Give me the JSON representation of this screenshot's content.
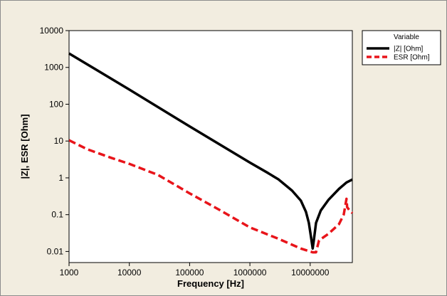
{
  "chart_data": {
    "type": "line",
    "title": "",
    "xlabel": "Frequency [Hz]",
    "ylabel": "|Z|, ESR [Ohm]",
    "x_scale": "log",
    "y_scale": "log",
    "xlim": [
      1000,
      50000000
    ],
    "ylim": [
      0.005,
      10000
    ],
    "x_ticks": [
      {
        "value": 1000,
        "label": "1000"
      },
      {
        "value": 10000,
        "label": "10000"
      },
      {
        "value": 100000,
        "label": "100000"
      },
      {
        "value": 1000000,
        "label": "1000000"
      },
      {
        "value": 10000000,
        "label": "10000000"
      }
    ],
    "y_ticks": [
      {
        "value": 0.01,
        "label": "0.01"
      },
      {
        "value": 0.1,
        "label": "0.1"
      },
      {
        "value": 1,
        "label": "1"
      },
      {
        "value": 10,
        "label": "10"
      },
      {
        "value": 100,
        "label": "100"
      },
      {
        "value": 1000,
        "label": "1000"
      },
      {
        "value": 10000,
        "label": "10000"
      }
    ],
    "grid": false,
    "legend": {
      "title": "Variable",
      "position": "right"
    },
    "series": [
      {
        "name": "|Z| [Ohm]",
        "color": "#000000",
        "style": "solid",
        "points": [
          [
            1000,
            2400
          ],
          [
            10000,
            250
          ],
          [
            100000,
            25
          ],
          [
            1000000,
            2.6
          ],
          [
            2000000,
            1.35
          ],
          [
            3000000,
            0.9
          ],
          [
            5000000,
            0.45
          ],
          [
            7000000,
            0.24
          ],
          [
            8500000,
            0.12
          ],
          [
            9500000,
            0.06
          ],
          [
            10300000,
            0.025
          ],
          [
            11000000,
            0.012
          ],
          [
            11500000,
            0.02
          ],
          [
            12500000,
            0.06
          ],
          [
            15000000,
            0.13
          ],
          [
            20000000,
            0.25
          ],
          [
            30000000,
            0.5
          ],
          [
            40000000,
            0.75
          ],
          [
            50000000,
            0.9
          ]
        ]
      },
      {
        "name": "ESR [Ohm]",
        "color": "#e8141a",
        "style": "dashed",
        "points": [
          [
            1000,
            10.5
          ],
          [
            2000,
            6
          ],
          [
            5000,
            3.5
          ],
          [
            10000,
            2.4
          ],
          [
            30000,
            1.2
          ],
          [
            100000,
            0.38
          ],
          [
            300000,
            0.14
          ],
          [
            1000000,
            0.045
          ],
          [
            3000000,
            0.022
          ],
          [
            7000000,
            0.012
          ],
          [
            11000000,
            0.0095
          ],
          [
            12500000,
            0.0095
          ],
          [
            14000000,
            0.02
          ],
          [
            20000000,
            0.03
          ],
          [
            30000000,
            0.055
          ],
          [
            36000000,
            0.1
          ],
          [
            40000000,
            0.27
          ],
          [
            41000000,
            0.16
          ],
          [
            45000000,
            0.13
          ],
          [
            50000000,
            0.11
          ]
        ]
      }
    ]
  }
}
